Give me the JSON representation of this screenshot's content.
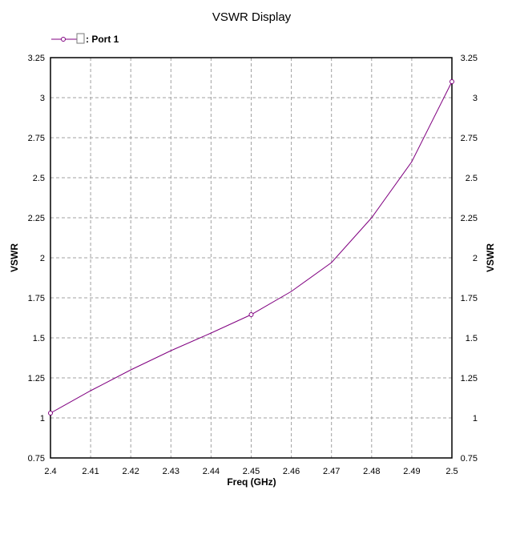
{
  "chart_data": {
    "type": "line",
    "title": "VSWR Display",
    "xlabel": "Freq (GHz)",
    "ylabel": "VSWR",
    "ylabel_right": "VSWR",
    "xlim": [
      2.4,
      2.5
    ],
    "ylim": [
      0.75,
      3.25
    ],
    "x_ticks": [
      "2.4",
      "2.41",
      "2.42",
      "2.43",
      "2.44",
      "2.45",
      "2.46",
      "2.47",
      "2.48",
      "2.49",
      "2.5"
    ],
    "y_ticks": [
      "0.75",
      "1",
      "1.25",
      "1.5",
      "1.75",
      "2",
      "2.25",
      "2.5",
      "2.75",
      "3",
      "3.25"
    ],
    "grid": true,
    "legend": {
      "placement": "top-left",
      "entries": [
        ": Port 1"
      ]
    },
    "series": [
      {
        "name": "Port 1",
        "color": "#800080",
        "x": [
          2.4,
          2.41,
          2.42,
          2.43,
          2.44,
          2.45,
          2.46,
          2.47,
          2.48,
          2.49,
          2.5
        ],
        "y": [
          1.03,
          1.17,
          1.3,
          1.42,
          1.53,
          1.645,
          1.79,
          1.97,
          2.25,
          2.6,
          3.1
        ],
        "markers_at": [
          2.4,
          2.45,
          2.5
        ]
      }
    ]
  }
}
